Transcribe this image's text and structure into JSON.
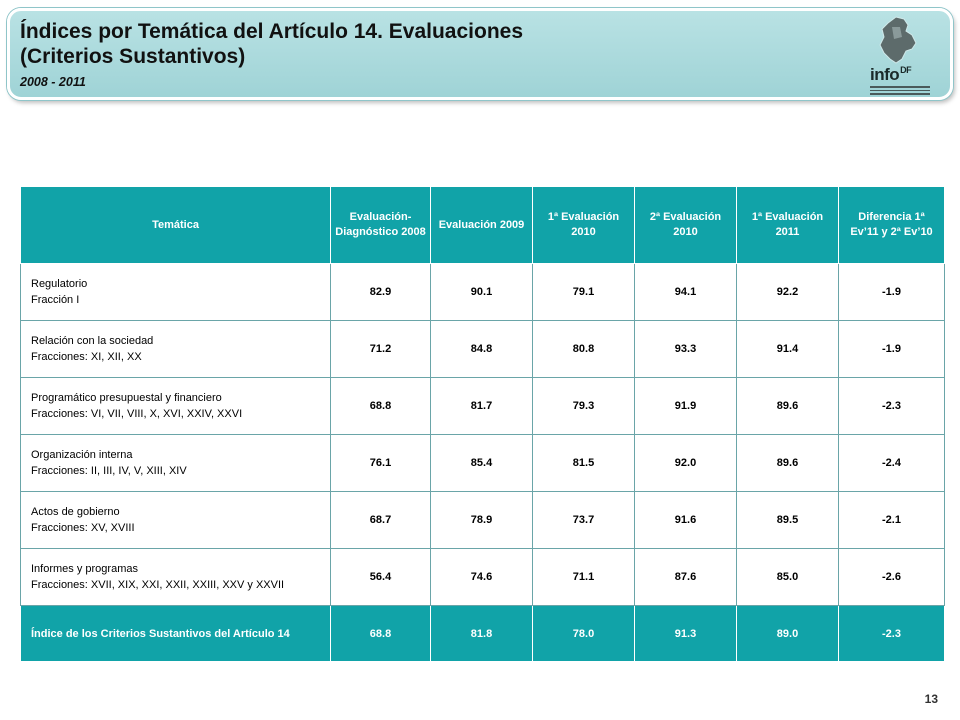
{
  "header": {
    "title_line1": "Índices por Temática del Artículo 14. Evaluaciones",
    "title_line2": "(Criterios Sustantivos)",
    "subtitle": "2008 - 2011",
    "logo_text": "info",
    "logo_superscript": "DF"
  },
  "table": {
    "columns": [
      "Temática",
      "Evaluación-Diagnóstico 2008",
      "Evaluación 2009",
      "1ª Evaluación 2010",
      "2ª Evaluación 2010",
      "1ª Evaluación 2011",
      "Diferencia 1ª Ev’11 y 2ª Ev’10"
    ],
    "rows": [
      {
        "tematica": "Regulatorio",
        "fracciones": "Fracción I",
        "values": [
          "82.9",
          "90.1",
          "79.1",
          "94.1",
          "92.2",
          "-1.9"
        ]
      },
      {
        "tematica": "Relación con la sociedad",
        "fracciones": "Fracciones: XI, XII, XX",
        "values": [
          "71.2",
          "84.8",
          "80.8",
          "93.3",
          "91.4",
          "-1.9"
        ]
      },
      {
        "tematica": "Programático presupuestal y financiero",
        "fracciones": "Fracciones: VI, VII, VIII, X, XVI, XXIV, XXVI",
        "values": [
          "68.8",
          "81.7",
          "79.3",
          "91.9",
          "89.6",
          "-2.3"
        ]
      },
      {
        "tematica": "Organización interna",
        "fracciones": "Fracciones: II, III, IV, V, XIII, XIV",
        "values": [
          "76.1",
          "85.4",
          "81.5",
          "92.0",
          "89.6",
          "-2.4"
        ]
      },
      {
        "tematica": "Actos de gobierno",
        "fracciones": "Fracciones: XV, XVIII",
        "values": [
          "68.7",
          "78.9",
          "73.7",
          "91.6",
          "89.5",
          "-2.1"
        ]
      },
      {
        "tematica": "Informes y programas",
        "fracciones": "Fracciones: XVII, XIX, XXI, XXII, XXIII, XXV y XXVII",
        "values": [
          "56.4",
          "74.6",
          "71.1",
          "87.6",
          "85.0",
          "-2.6"
        ]
      }
    ],
    "footer": {
      "label": "Índice de los Criterios Sustantivos del Artículo 14",
      "values": [
        "68.8",
        "81.8",
        "78.0",
        "91.3",
        "89.0",
        "-2.3"
      ]
    }
  },
  "page_number": "13",
  "colors": {
    "header_teal": "#11a3a8",
    "banner": "#a8d8db"
  }
}
